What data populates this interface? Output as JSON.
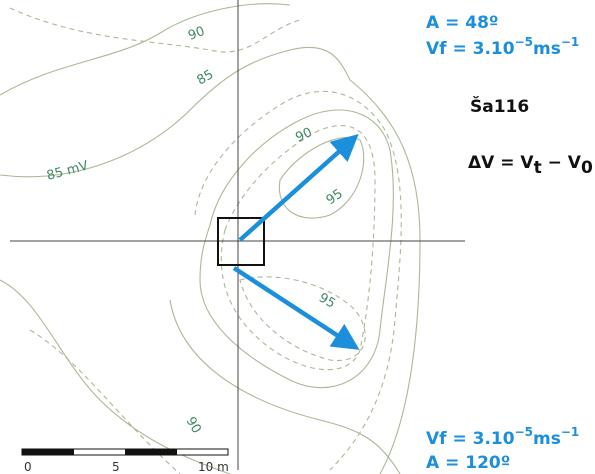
{
  "contour_labels": [
    "90",
    "85",
    "85 mV",
    "90",
    "95",
    "95",
    "90"
  ],
  "top_annotation": {
    "angle": "A = 48º",
    "vf": {
      "base": "Vf = 3.10",
      "exp": "−5",
      "unit": "ms",
      "unit_exp": "−1"
    }
  },
  "site": "Ša116",
  "formula": {
    "lhs": "ΔV = V",
    "sub1": "t",
    "minus": " − V",
    "sub2": "0"
  },
  "bottom_annotation": {
    "vf": {
      "base": "Vf = 3.10",
      "exp": "−5",
      "unit": "ms",
      "unit_exp": "−1"
    },
    "angle": "A = 120º"
  },
  "scale_bar": {
    "labels": [
      "0",
      "5",
      "10 m"
    ]
  }
}
